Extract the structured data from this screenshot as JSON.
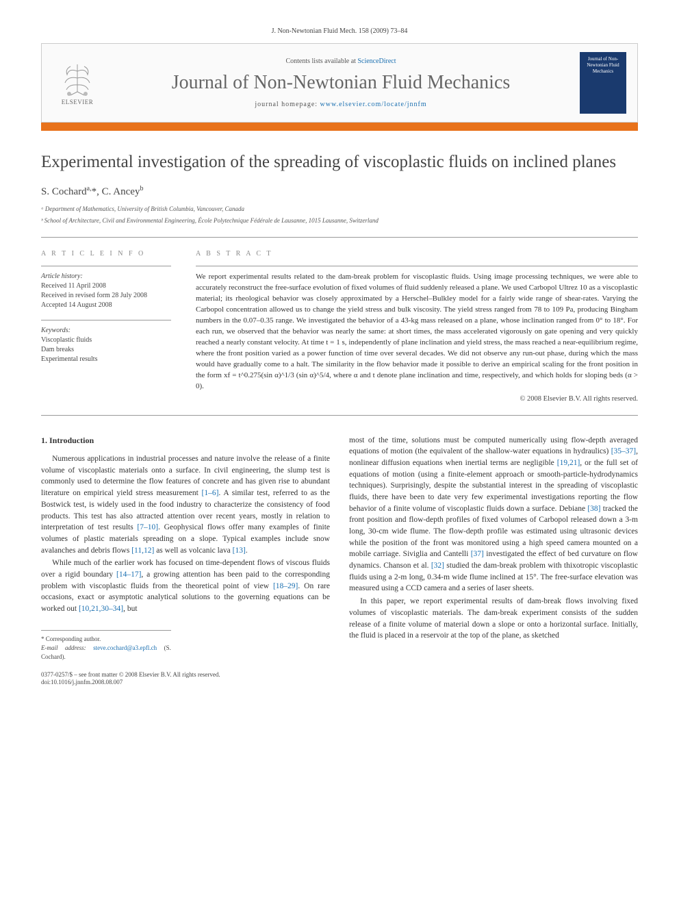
{
  "journal_ref": "J. Non-Newtonian Fluid Mech. 158 (2009) 73–84",
  "header": {
    "contents_prefix": "Contents lists available at ",
    "contents_link": "ScienceDirect",
    "journal_name": "Journal of Non-Newtonian Fluid Mechanics",
    "homepage_prefix": "journal homepage: ",
    "homepage_url": "www.elsevier.com/locate/jnnfm",
    "publisher": "ELSEVIER",
    "cover_text": "Journal of Non-Newtonian Fluid Mechanics"
  },
  "title": "Experimental investigation of the spreading of viscoplastic fluids on inclined planes",
  "authors_html": "S. Cochard<sup>a,</sup>*, C. Ancey<sup>b</sup>",
  "affiliations": [
    "ᵃ Department of Mathematics, University of British Columbia, Vancouver, Canada",
    "ᵇ School of Architecture, Civil and Environmental Engineering, École Polytechnique Fédérale de Lausanne, 1015 Lausanne, Switzerland"
  ],
  "article_info": {
    "heading": "A R T I C L E   I N F O",
    "history_label": "Article history:",
    "history": [
      "Received 11 April 2008",
      "Received in revised form 28 July 2008",
      "Accepted 14 August 2008"
    ],
    "keywords_label": "Keywords:",
    "keywords": [
      "Viscoplastic fluids",
      "Dam breaks",
      "Experimental results"
    ]
  },
  "abstract": {
    "heading": "A B S T R A C T",
    "text": "We report experimental results related to the dam-break problem for viscoplastic fluids. Using image processing techniques, we were able to accurately reconstruct the free-surface evolution of fixed volumes of fluid suddenly released a plane. We used Carbopol Ultrez 10 as a viscoplastic material; its rheological behavior was closely approximated by a Herschel–Bulkley model for a fairly wide range of shear-rates. Varying the Carbopol concentration allowed us to change the yield stress and bulk viscosity. The yield stress ranged from 78 to 109 Pa, producing Bingham numbers in the 0.07–0.35 range. We investigated the behavior of a 43-kg mass released on a plane, whose inclination ranged from 0° to 18°. For each run, we observed that the behavior was nearly the same: at short times, the mass accelerated vigorously on gate opening and very quickly reached a nearly constant velocity. At time t = 1 s, independently of plane inclination and yield stress, the mass reached a near-equilibrium regime, where the front position varied as a power function of time over several decades. We did not observe any run-out phase, during which the mass would have gradually come to a halt. The similarity in the flow behavior made it possible to derive an empirical scaling for the front position in the form xf = t^0.275(sin α)^1/3 (sin α)^5/4, where α and t denote plane inclination and time, respectively, and which holds for sloping beds (α > 0).",
    "copyright": "© 2008 Elsevier B.V. All rights reserved."
  },
  "body": {
    "sec1_head": "1. Introduction",
    "p1": "Numerous applications in industrial processes and nature involve the release of a finite volume of viscoplastic materials onto a surface. In civil engineering, the slump test is commonly used to determine the flow features of concrete and has given rise to abundant literature on empirical yield stress measurement [1–6]. A similar test, referred to as the Bostwick test, is widely used in the food industry to characterize the consistency of food products. This test has also attracted attention over recent years, mostly in relation to interpretation of test results [7–10]. Geophysical flows offer many examples of finite volumes of plastic materials spreading on a slope. Typical examples include snow avalanches and debris flows [11,12] as well as volcanic lava [13].",
    "p2": "While much of the earlier work has focused on time-dependent flows of viscous fluids over a rigid boundary [14–17], a growing attention has been paid to the corresponding problem with viscoplastic fluids from the theoretical point of view [18–29]. On rare occasions, exact or asymptotic analytical solutions to the governing equations can be worked out [10,21,30–34], but",
    "p3": "most of the time, solutions must be computed numerically using flow-depth averaged equations of motion (the equivalent of the shallow-water equations in hydraulics) [35–37], nonlinear diffusion equations when inertial terms are negligible [19,21], or the full set of equations of motion (using a finite-element approach or smooth-particle-hydrodynamics techniques). Surprisingly, despite the substantial interest in the spreading of viscoplastic fluids, there have been to date very few experimental investigations reporting the flow behavior of a finite volume of viscoplastic fluids down a surface. Debiane [38] tracked the front position and flow-depth profiles of fixed volumes of Carbopol released down a 3-m long, 30-cm wide flume. The flow-depth profile was estimated using ultrasonic devices while the position of the front was monitored using a high speed camera mounted on a mobile carriage. Siviglia and Cantelli [37] investigated the effect of bed curvature on flow dynamics. Chanson et al. [32] studied the dam-break problem with thixotropic viscoplastic fluids using a 2-m long, 0.34-m wide flume inclined at 15°. The free-surface elevation was measured using a CCD camera and a series of laser sheets.",
    "p4": "In this paper, we report experimental results of dam-break flows involving fixed volumes of viscoplastic materials. The dam-break experiment consists of the sudden release of a finite volume of material down a slope or onto a horizontal surface. Initially, the fluid is placed in a reservoir at the top of the plane, as sketched"
  },
  "corresponding": {
    "label": "* Corresponding author.",
    "email_label": "E-mail address:",
    "email": "steve.cochard@a3.epfl.ch",
    "email_who": "(S. Cochard)."
  },
  "footer": {
    "line1": "0377-0257/$ – see front matter © 2008 Elsevier B.V. All rights reserved.",
    "line2": "doi:10.1016/j.jnnfm.2008.08.007"
  },
  "refs": {
    "r1_6": "[1–6]",
    "r7_10": "[7–10]",
    "r11_12": "[11,12]",
    "r13": "[13]",
    "r14_17": "[14–17]",
    "r18_29": "[18–29]",
    "r10_21_30_34": "[10,21,30–34]",
    "r35_37": "[35–37]",
    "r19_21": "[19,21]",
    "r38": "[38]",
    "r37": "[37]",
    "r32": "[32]"
  }
}
